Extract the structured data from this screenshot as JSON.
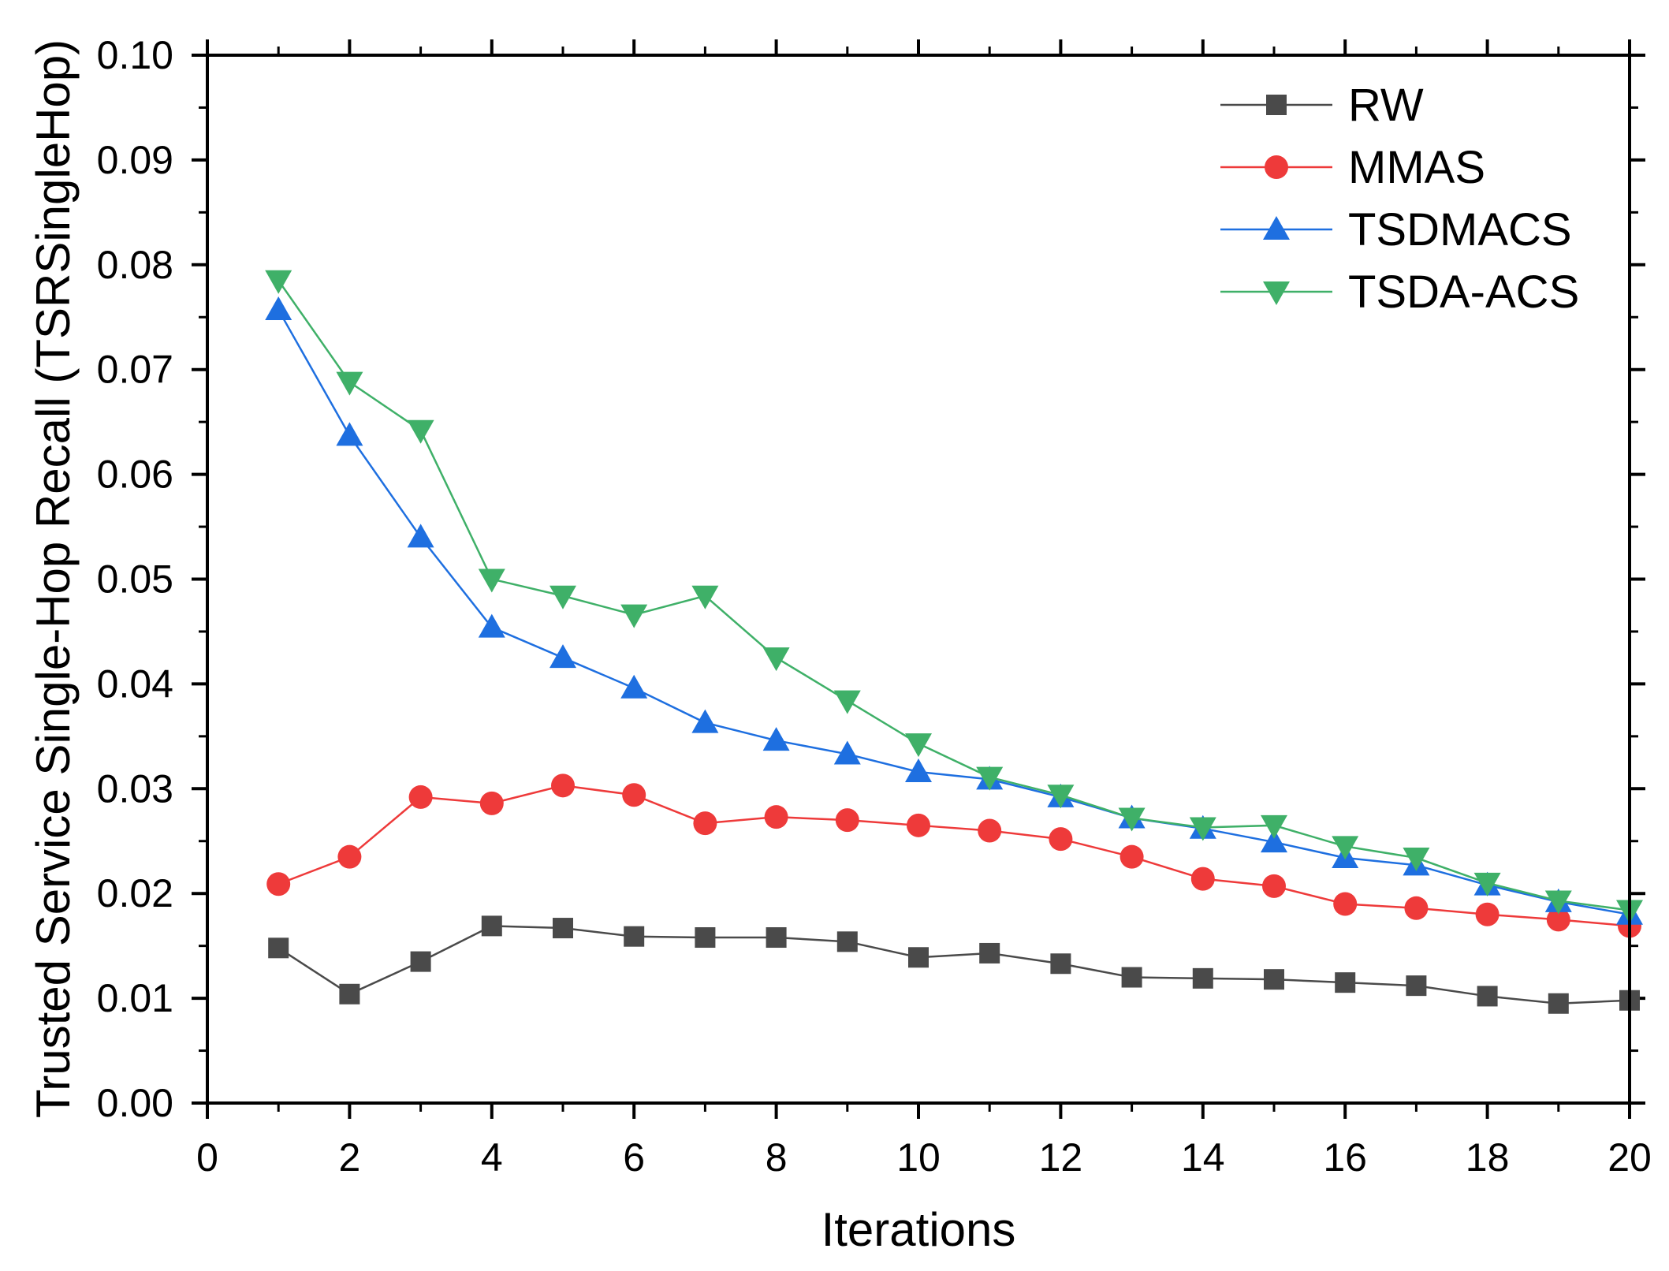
{
  "chart_data": {
    "type": "line",
    "title": "",
    "xlabel": "Iterations",
    "ylabel": "Trusted Service Single-Hop Recall (TSRSingleHop)",
    "xlim": [
      0,
      20
    ],
    "ylim": [
      0,
      0.1
    ],
    "grid": false,
    "legend_position": "top-right",
    "x_ticks": [
      "0",
      "2",
      "4",
      "6",
      "8",
      "10",
      "12",
      "14",
      "16",
      "18",
      "20"
    ],
    "y_ticks": [
      "0.00",
      "0.01",
      "0.02",
      "0.03",
      "0.04",
      "0.05",
      "0.06",
      "0.07",
      "0.08",
      "0.09",
      "0.10"
    ],
    "x": [
      1,
      2,
      3,
      4,
      5,
      6,
      7,
      8,
      9,
      10,
      11,
      12,
      13,
      14,
      15,
      16,
      17,
      18,
      19,
      20
    ],
    "series": [
      {
        "name": "RW",
        "color": "#4a4a4a",
        "marker": "square",
        "values": [
          0.0148,
          0.0104,
          0.0135,
          0.0169,
          0.0167,
          0.0159,
          0.0158,
          0.0158,
          0.0154,
          0.0139,
          0.0143,
          0.0133,
          0.012,
          0.0119,
          0.0118,
          0.0115,
          0.0112,
          0.0102,
          0.0095,
          0.0098
        ]
      },
      {
        "name": "MMAS",
        "color": "#ee3a3a",
        "marker": "circle",
        "values": [
          0.0209,
          0.0235,
          0.0292,
          0.0286,
          0.0303,
          0.0294,
          0.0267,
          0.0273,
          0.027,
          0.0265,
          0.026,
          0.0252,
          0.0235,
          0.0214,
          0.0207,
          0.019,
          0.0186,
          0.018,
          0.0175,
          0.0169
        ]
      },
      {
        "name": "TSDMACS",
        "color": "#1e6fe0",
        "marker": "triangle-up",
        "values": [
          0.0757,
          0.0637,
          0.054,
          0.0454,
          0.0425,
          0.0396,
          0.0363,
          0.0346,
          0.0333,
          0.0316,
          0.0309,
          0.0292,
          0.0272,
          0.0262,
          0.0249,
          0.0234,
          0.0227,
          0.0208,
          0.0192,
          0.018
        ]
      },
      {
        "name": "TSDA-ACS",
        "color": "#3fb068",
        "marker": "triangle-down",
        "values": [
          0.0785,
          0.0688,
          0.0642,
          0.05,
          0.0484,
          0.0466,
          0.0484,
          0.0425,
          0.0384,
          0.0343,
          0.0311,
          0.0294,
          0.0272,
          0.0263,
          0.0265,
          0.0245,
          0.0234,
          0.021,
          0.0193,
          0.0184
        ]
      }
    ]
  }
}
